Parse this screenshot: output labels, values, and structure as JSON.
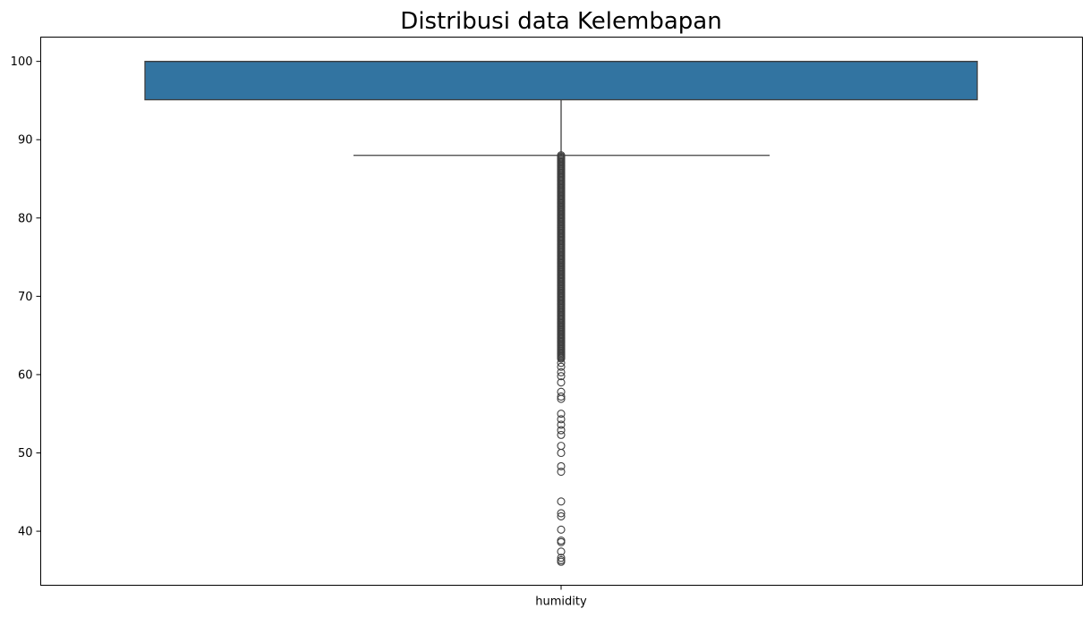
{
  "chart_data": {
    "type": "box",
    "title": "Distribusi data Kelembapan",
    "xlabel": "",
    "ylabel": "",
    "categories": [
      "humidity"
    ],
    "ylim": [
      33.1,
      103.1
    ],
    "yticks": [
      40,
      50,
      60,
      70,
      80,
      90,
      100
    ],
    "box": {
      "q1": 95.1,
      "median": 100,
      "q3": 100,
      "whisker_low": 88.0,
      "whisker_high": 100
    },
    "dense_outlier_range": [
      62.0,
      88.0
    ],
    "outliers": [
      61.5,
      61.0,
      60.3,
      59.8,
      59.0,
      57.8,
      57.2,
      56.9,
      55.0,
      54.3,
      53.6,
      52.9,
      52.3,
      50.9,
      50.0,
      48.3,
      47.6,
      43.8,
      42.3,
      41.9,
      40.2,
      38.8,
      38.6,
      37.4,
      36.6,
      36.3,
      36.1
    ],
    "grid": false,
    "colors": {
      "box_fill": "#3274a1",
      "line": "#3f3f3f",
      "axis": "#000000"
    }
  }
}
